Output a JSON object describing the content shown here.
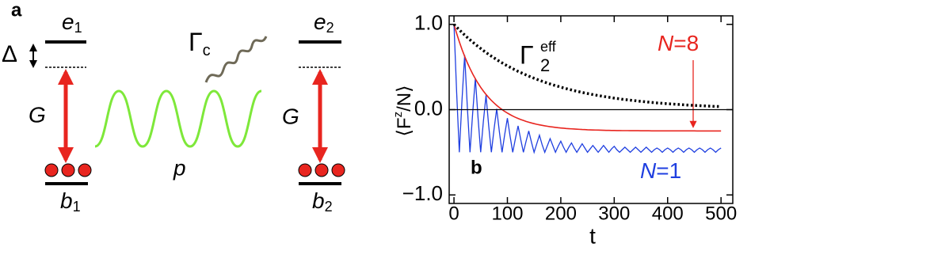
{
  "diagram": {
    "panel_label": "a",
    "levels": [
      {
        "upper": {
          "symbol": "e",
          "sub": "1"
        },
        "lower": {
          "symbol": "b",
          "sub": "1"
        },
        "coupling": "G"
      },
      {
        "upper": {
          "symbol": "e",
          "sub": "2"
        },
        "lower": {
          "symbol": "b",
          "sub": "2"
        },
        "coupling": "G"
      }
    ],
    "detuning": "Δ",
    "cavity_decay": {
      "symbol": "Γ",
      "sub": "c"
    },
    "photon": "p"
  },
  "chart_data": {
    "type": "line",
    "panel_label": "b",
    "xlabel": "t",
    "ylabel": {
      "main": "⟨F",
      "sup": "z",
      "rest": "/N⟩"
    },
    "x": [
      0,
      5,
      10,
      15,
      20,
      25,
      30,
      35,
      40,
      45,
      50,
      55,
      60,
      65,
      70,
      75,
      80,
      85,
      90,
      95,
      100,
      105,
      110,
      115,
      120,
      125,
      130,
      135,
      140,
      145,
      150,
      155,
      160,
      165,
      170,
      175,
      180,
      185,
      190,
      195,
      200,
      205,
      210,
      215,
      220,
      225,
      230,
      235,
      240,
      245,
      250,
      255,
      260,
      265,
      270,
      275,
      280,
      285,
      290,
      295,
      300,
      305,
      310,
      315,
      320,
      325,
      330,
      335,
      340,
      345,
      350,
      355,
      360,
      365,
      370,
      375,
      380,
      385,
      390,
      395,
      400,
      405,
      410,
      415,
      420,
      425,
      430,
      435,
      440,
      445,
      450,
      455,
      460,
      465,
      470,
      475,
      480,
      485,
      490,
      495,
      500
    ],
    "series": [
      {
        "name": [
          "N",
          "=1"
        ],
        "color": "#1f3fe0",
        "style": "solid",
        "width": 1.3,
        "values": [
          1.0,
          0.2,
          -0.5,
          0.11,
          0.64,
          0.03,
          -0.5,
          -0.04,
          0.37,
          -0.09,
          -0.5,
          -0.14,
          0.17,
          -0.19,
          -0.5,
          -0.23,
          0.01,
          -0.26,
          -0.5,
          -0.29,
          -0.1,
          -0.31,
          -0.5,
          -0.34,
          -0.19,
          -0.35,
          -0.5,
          -0.37,
          -0.25,
          -0.38,
          -0.5,
          -0.4,
          -0.3,
          -0.41,
          -0.5,
          -0.42,
          -0.34,
          -0.42,
          -0.5,
          -0.43,
          -0.37,
          -0.44,
          -0.5,
          -0.44,
          -0.39,
          -0.45,
          -0.5,
          -0.45,
          -0.4,
          -0.45,
          -0.5,
          -0.46,
          -0.42,
          -0.46,
          -0.5,
          -0.46,
          -0.42,
          -0.46,
          -0.5,
          -0.46,
          -0.43,
          -0.47,
          -0.5,
          -0.47,
          -0.44,
          -0.47,
          -0.5,
          -0.47,
          -0.44,
          -0.47,
          -0.5,
          -0.47,
          -0.44,
          -0.47,
          -0.5,
          -0.47,
          -0.45,
          -0.47,
          -0.5,
          -0.47,
          -0.45,
          -0.47,
          -0.5,
          -0.47,
          -0.45,
          -0.47,
          -0.5,
          -0.47,
          -0.45,
          -0.47,
          -0.5,
          -0.47,
          -0.45,
          -0.47,
          -0.5,
          -0.47,
          -0.45,
          -0.47,
          -0.5,
          -0.47,
          -0.45
        ]
      },
      {
        "name": [
          "N",
          "=8"
        ],
        "color": "#e8251f",
        "style": "solid",
        "width": 1.6,
        "values": [
          1.0,
          0.893,
          0.796,
          0.706,
          0.625,
          0.55,
          0.482,
          0.419,
          0.362,
          0.31,
          0.262,
          0.218,
          0.178,
          0.142,
          0.108,
          0.078,
          0.05,
          0.024,
          0.001,
          -0.021,
          -0.04,
          -0.058,
          -0.075,
          -0.09,
          -0.103,
          -0.116,
          -0.127,
          -0.138,
          -0.147,
          -0.156,
          -0.164,
          -0.172,
          -0.178,
          -0.184,
          -0.19,
          -0.195,
          -0.2,
          -0.204,
          -0.208,
          -0.212,
          -0.215,
          -0.218,
          -0.221,
          -0.223,
          -0.225,
          -0.227,
          -0.229,
          -0.231,
          -0.233,
          -0.234,
          -0.236,
          -0.237,
          -0.238,
          -0.239,
          -0.24,
          -0.241,
          -0.242,
          -0.243,
          -0.243,
          -0.244,
          -0.244,
          -0.245,
          -0.245,
          -0.246,
          -0.246,
          -0.246,
          -0.247,
          -0.247,
          -0.247,
          -0.247,
          -0.248,
          -0.248,
          -0.248,
          -0.248,
          -0.249,
          -0.249,
          -0.249,
          -0.249,
          -0.249,
          -0.249,
          -0.249,
          -0.249,
          -0.249,
          -0.249,
          -0.249,
          -0.249,
          -0.249,
          -0.249,
          -0.249,
          -0.249,
          -0.249,
          -0.25,
          -0.25,
          -0.25,
          -0.25,
          -0.25,
          -0.25,
          -0.25,
          -0.25,
          -0.25,
          -0.25
        ]
      },
      {
        "name": [
          "Γ",
          "2",
          "eff"
        ],
        "color": "#000000",
        "style": "dotted",
        "width": 3.5,
        "values": [
          1.0,
          0.967,
          0.936,
          0.905,
          0.875,
          0.846,
          0.819,
          0.792,
          0.766,
          0.741,
          0.717,
          0.693,
          0.67,
          0.648,
          0.627,
          0.607,
          0.587,
          0.567,
          0.549,
          0.531,
          0.513,
          0.497,
          0.48,
          0.465,
          0.449,
          0.435,
          0.421,
          0.407,
          0.393,
          0.38,
          0.368,
          0.356,
          0.344,
          0.333,
          0.322,
          0.311,
          0.301,
          0.291,
          0.282,
          0.273,
          0.264,
          0.255,
          0.247,
          0.238,
          0.231,
          0.223,
          0.216,
          0.209,
          0.202,
          0.195,
          0.189,
          0.183,
          0.177,
          0.171,
          0.165,
          0.16,
          0.155,
          0.15,
          0.145,
          0.14,
          0.135,
          0.131,
          0.127,
          0.122,
          0.118,
          0.115,
          0.111,
          0.107,
          0.104,
          0.1,
          0.097,
          0.094,
          0.091,
          0.088,
          0.085,
          0.082,
          0.079,
          0.077,
          0.074,
          0.072,
          0.069,
          0.067,
          0.065,
          0.063,
          0.061,
          0.059,
          0.057,
          0.055,
          0.053,
          0.051,
          0.05,
          0.048,
          0.047,
          0.045,
          0.044,
          0.042,
          0.041,
          0.039,
          0.038,
          0.037,
          0.036
        ]
      }
    ],
    "xlim": [
      -9,
      522
    ],
    "ylim": [
      -1.1,
      1.1
    ],
    "xticks": [
      0,
      100,
      200,
      300,
      400,
      500
    ],
    "yticks": [
      {
        "value": -1,
        "label": "−1.0"
      },
      {
        "value": 0,
        "label": "0.0"
      },
      {
        "value": 1,
        "label": "1.0"
      }
    ],
    "zero_line": true,
    "grid": false
  }
}
